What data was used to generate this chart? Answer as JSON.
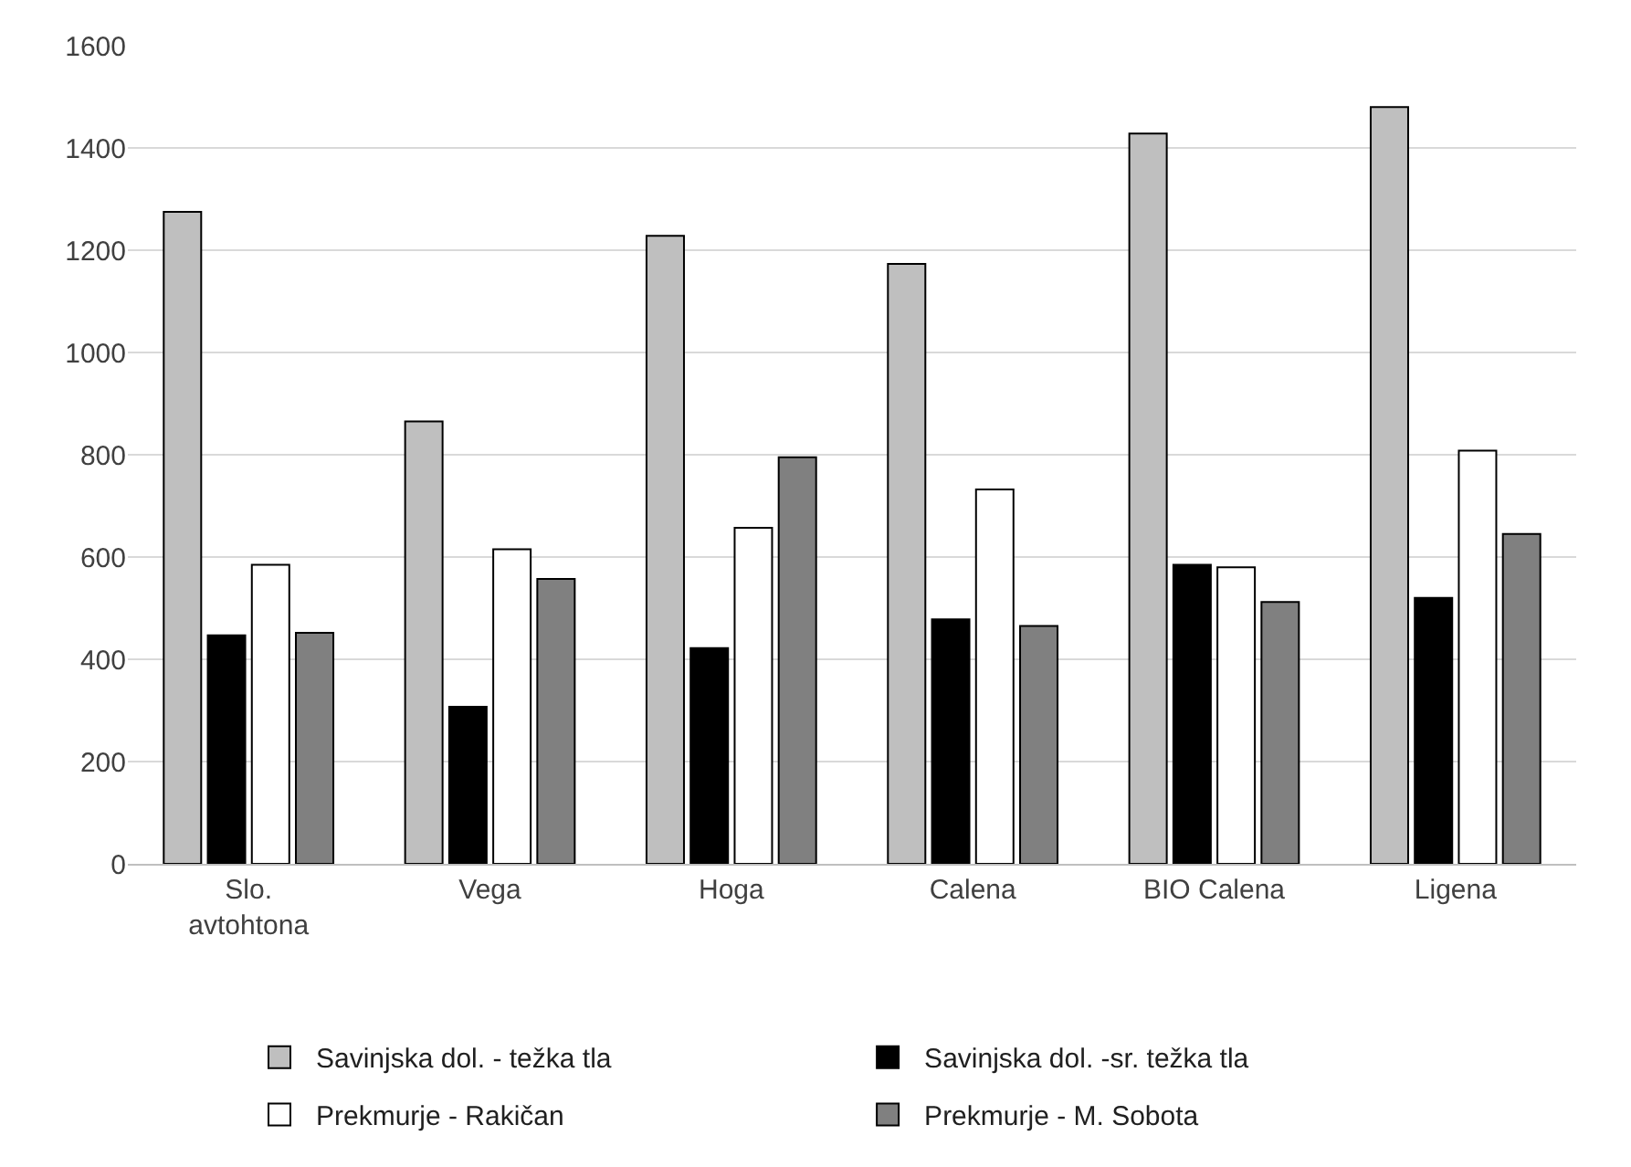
{
  "chart_data": {
    "type": "bar",
    "categories": [
      "Slo. avtohtona",
      "Vega",
      "Hoga",
      "Calena",
      "BIO Calena",
      "Ligena"
    ],
    "series": [
      {
        "name": "Savinjska dol. - težka tla",
        "color": "#bfbfbf",
        "values": [
          1275,
          865,
          1228,
          1173,
          1428,
          1480
        ]
      },
      {
        "name": "Savinjska dol. -sr. težka tla",
        "color": "#000000",
        "values": [
          447,
          307,
          422,
          478,
          585,
          520
        ]
      },
      {
        "name": "Prekmurje - Rakičan",
        "color": "#ffffff",
        "values": [
          585,
          615,
          657,
          732,
          580,
          808
        ]
      },
      {
        "name": "Prekmurje - M. Sobota",
        "color": "#808080",
        "values": [
          452,
          557,
          795,
          465,
          512,
          645
        ]
      }
    ],
    "ylim": [
      0,
      1600
    ],
    "yticks": [
      0,
      200,
      400,
      600,
      800,
      1000,
      1200,
      1400,
      1600
    ],
    "grid": "y",
    "legend": "bottom"
  }
}
